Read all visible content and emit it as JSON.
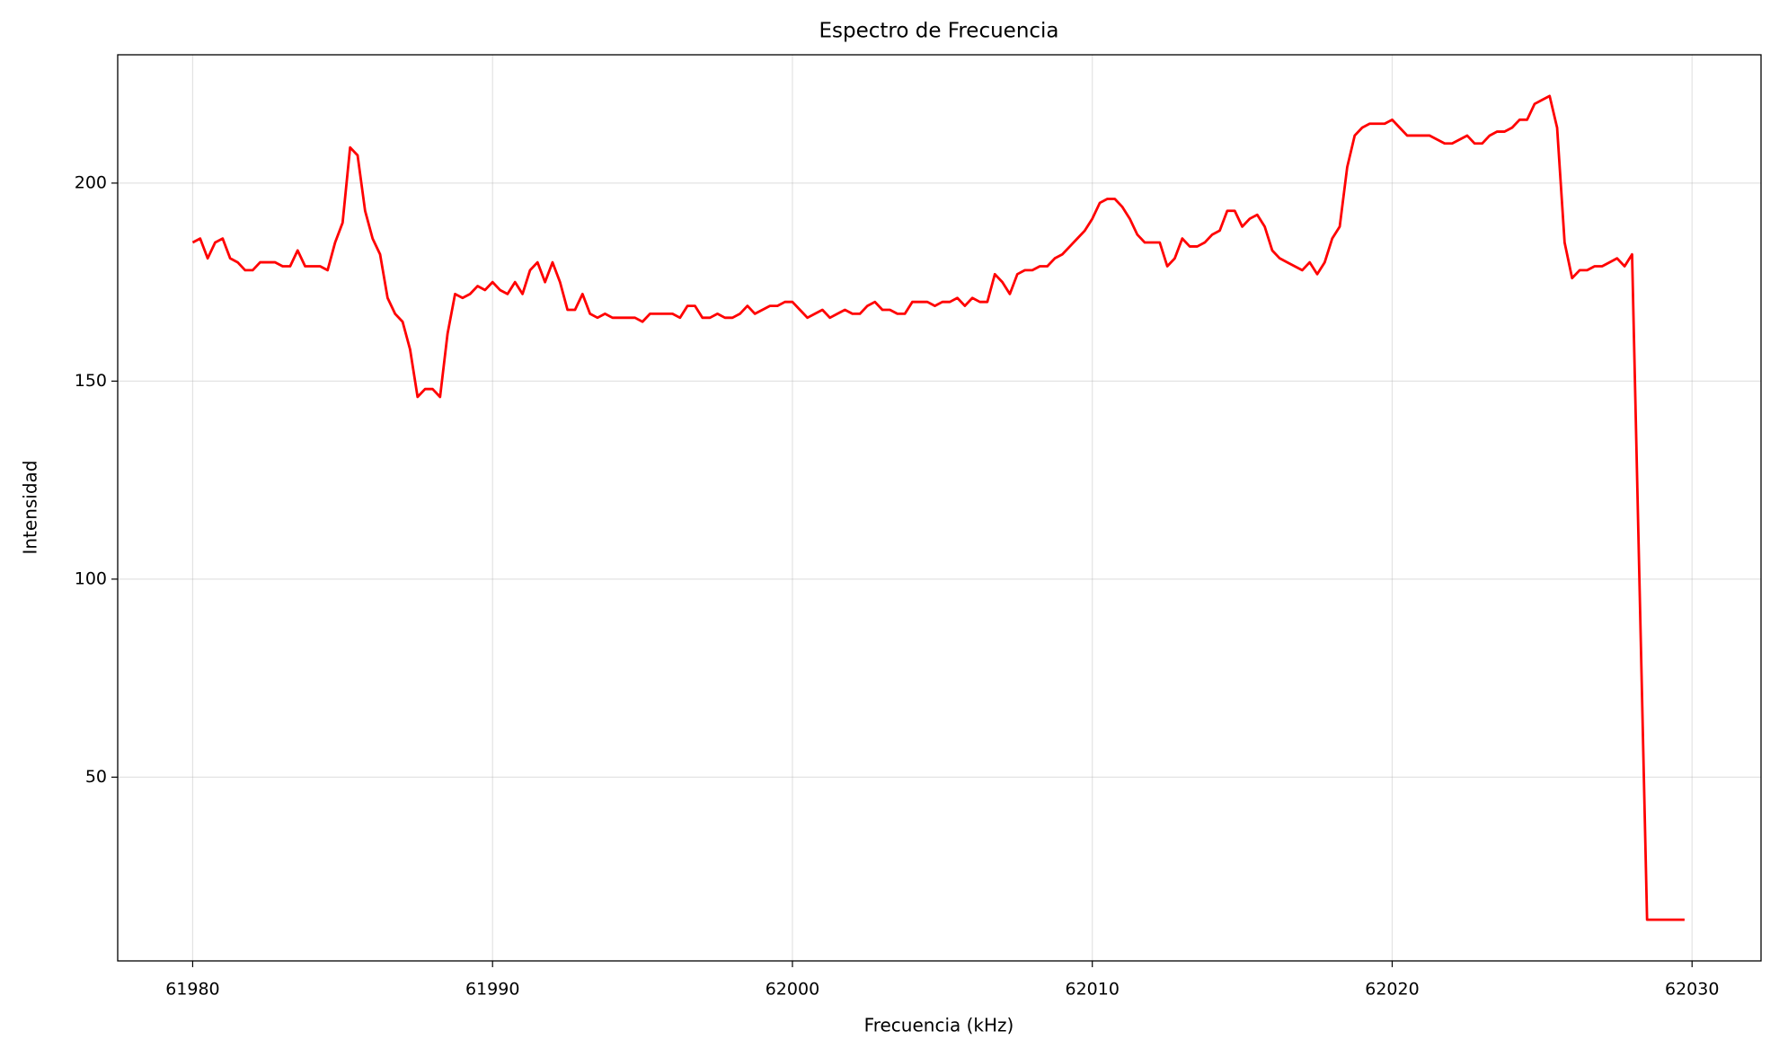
{
  "chart_data": {
    "type": "line",
    "title": "Espectro de Frecuencia",
    "x_label": "Frecuencia (kHz)",
    "y_label": "Intensidad",
    "color": "#ff0000",
    "grid": true,
    "xlim": [
      61977.5,
      62032.3
    ],
    "ylim": [
      3.6,
      232.4
    ],
    "xticks": [
      61980,
      61990,
      62000,
      62010,
      62020,
      62030
    ],
    "yticks": [
      50,
      100,
      150,
      200
    ],
    "x": [
      61980,
      61980.25,
      61980.5,
      61980.75,
      61981,
      61981.25,
      61981.5,
      61981.75,
      61982,
      61982.25,
      61982.5,
      61982.75,
      61983,
      61983.25,
      61983.5,
      61983.75,
      61984,
      61984.25,
      61984.5,
      61984.75,
      61985,
      61985.25,
      61985.5,
      61985.75,
      61986,
      61986.25,
      61986.5,
      61986.75,
      61987,
      61987.25,
      61987.5,
      61987.75,
      61988,
      61988.25,
      61988.5,
      61988.75,
      61989,
      61989.25,
      61989.5,
      61989.75,
      61990,
      61990.25,
      61990.5,
      61990.75,
      61991,
      61991.25,
      61991.5,
      61991.75,
      61992,
      61992.25,
      61992.5,
      61992.75,
      61993,
      61993.25,
      61993.5,
      61993.75,
      61994,
      61994.25,
      61994.5,
      61994.75,
      61995,
      61995.25,
      61995.5,
      61995.75,
      61996,
      61996.25,
      61996.5,
      61996.75,
      61997,
      61997.25,
      61997.5,
      61997.75,
      61998,
      61998.25,
      61998.5,
      61998.75,
      61999,
      61999.25,
      61999.5,
      61999.75,
      62000,
      62000.25,
      62000.5,
      62000.75,
      62001,
      62001.25,
      62001.5,
      62001.75,
      62002,
      62002.25,
      62002.5,
      62002.75,
      62003,
      62003.25,
      62003.5,
      62003.75,
      62004,
      62004.25,
      62004.5,
      62004.75,
      62005,
      62005.25,
      62005.5,
      62005.75,
      62006,
      62006.25,
      62006.5,
      62006.75,
      62007,
      62007.25,
      62007.5,
      62007.75,
      62008,
      62008.25,
      62008.5,
      62008.75,
      62009,
      62009.25,
      62009.5,
      62009.75,
      62010,
      62010.25,
      62010.5,
      62010.75,
      62011,
      62011.25,
      62011.5,
      62011.75,
      62012,
      62012.25,
      62012.5,
      62012.75,
      62013,
      62013.25,
      62013.5,
      62013.75,
      62014,
      62014.25,
      62014.5,
      62014.75,
      62015,
      62015.25,
      62015.5,
      62015.75,
      62016,
      62016.25,
      62016.5,
      62016.75,
      62017,
      62017.25,
      62017.5,
      62017.75,
      62018,
      62018.25,
      62018.5,
      62018.75,
      62019,
      62019.25,
      62019.5,
      62019.75,
      62020,
      62020.25,
      62020.5,
      62020.75,
      62021,
      62021.25,
      62021.5,
      62021.75,
      62022,
      62022.25,
      62022.5,
      62022.75,
      62023,
      62023.25,
      62023.5,
      62023.75,
      62024,
      62024.25,
      62024.5,
      62024.75,
      62025,
      62025.25,
      62025.5,
      62025.75,
      62026,
      62026.25,
      62026.5,
      62026.75,
      62027,
      62027.25,
      62027.5,
      62027.75,
      62028,
      62028.5,
      62028.75,
      62029,
      62029.25,
      62029.5,
      62029.75
    ],
    "values": [
      185,
      186,
      181,
      185,
      186,
      181,
      180,
      178,
      178,
      180,
      180,
      180,
      179,
      179,
      183,
      179,
      179,
      179,
      178,
      185,
      190,
      209,
      207,
      193,
      186,
      182,
      171,
      167,
      165,
      158,
      146,
      148,
      148,
      146,
      162,
      172,
      171,
      172,
      174,
      173,
      175,
      173,
      172,
      175,
      172,
      178,
      180,
      175,
      180,
      175,
      168,
      168,
      172,
      167,
      166,
      167,
      166,
      166,
      166,
      166,
      165,
      167,
      167,
      167,
      167,
      166,
      169,
      169,
      166,
      166,
      167,
      166,
      166,
      167,
      169,
      167,
      168,
      169,
      169,
      170,
      170,
      168,
      166,
      167,
      168,
      166,
      167,
      168,
      167,
      167,
      169,
      170,
      168,
      168,
      167,
      167,
      170,
      170,
      170,
      169,
      170,
      170,
      171,
      169,
      171,
      170,
      170,
      177,
      175,
      172,
      177,
      178,
      178,
      179,
      179,
      181,
      182,
      184,
      186,
      188,
      191,
      195,
      196,
      196,
      194,
      191,
      187,
      185,
      185,
      185,
      179,
      181,
      186,
      184,
      184,
      185,
      187,
      188,
      193,
      193,
      189,
      191,
      192,
      189,
      183,
      181,
      180,
      179,
      178,
      180,
      177,
      180,
      186,
      189,
      204,
      212,
      214,
      215,
      215,
      215,
      216,
      214,
      212,
      212,
      212,
      212,
      211,
      210,
      210,
      211,
      212,
      210,
      210,
      212,
      213,
      213,
      214,
      216,
      216,
      220,
      221,
      222,
      214,
      185,
      176,
      178,
      178,
      179,
      179,
      180,
      181,
      179,
      182,
      14,
      14,
      14,
      14,
      14,
      14
    ]
  }
}
